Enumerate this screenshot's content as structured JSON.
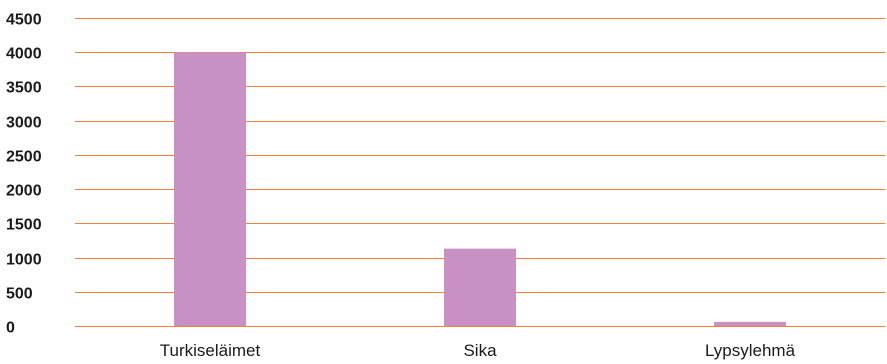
{
  "chart_data": {
    "type": "bar",
    "title": "",
    "xlabel": "",
    "ylabel": "",
    "categories": [
      "Turkiseläimet",
      "Sika",
      "Lypsylehmä"
    ],
    "values": [
      4000,
      1130,
      60
    ],
    "ylim": [
      0,
      4500
    ],
    "yticks": [
      0,
      500,
      1000,
      1500,
      2000,
      2500,
      3000,
      3500,
      4000,
      4500
    ],
    "grid": true,
    "legend": "none",
    "colors": {
      "bar": "#c990c4",
      "grid": "#f0803c",
      "text": "#1a1a1a"
    }
  }
}
